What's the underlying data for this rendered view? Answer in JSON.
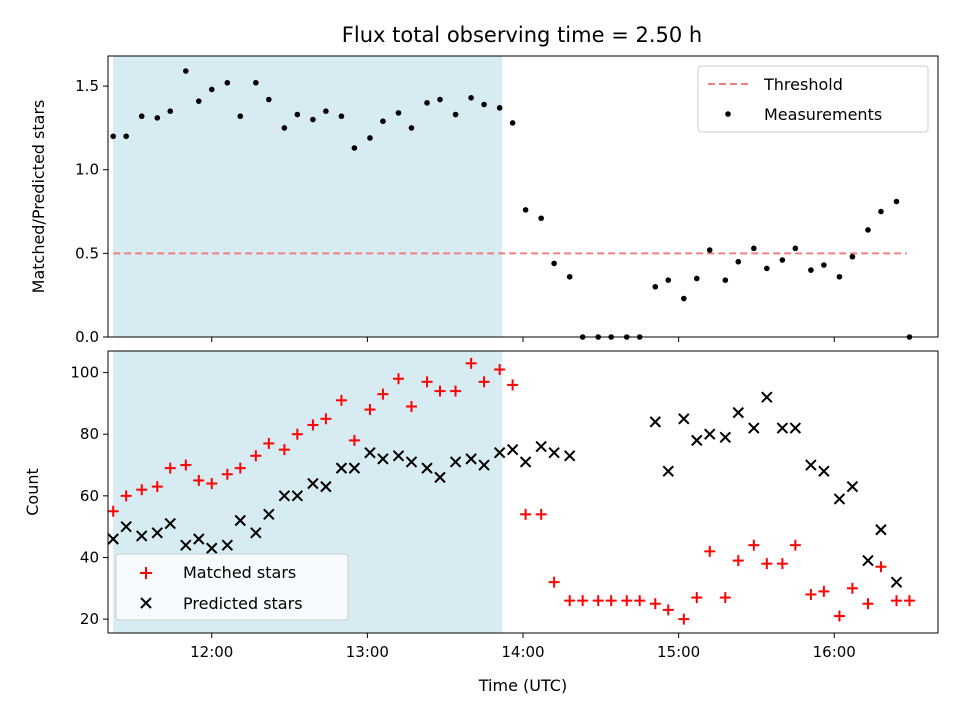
{
  "chart_data": [
    {
      "type": "scatter",
      "title": "Flux total observing time = 2.50 h",
      "xlabel": "",
      "ylabel": "Matched/Predicted stars",
      "ylim": [
        0,
        1.68
      ],
      "xlim": [
        "11:20",
        "16:40"
      ],
      "yticks": [
        0.0,
        0.5,
        1.0,
        1.5
      ],
      "ytick_labels": [
        "0.0",
        "0.5",
        "1.0",
        "1.5"
      ],
      "shaded_span": {
        "start": "11:22",
        "end": "13:52",
        "color": "#add8e6"
      },
      "legend_position": "top-right",
      "threshold": {
        "name": "Threshold",
        "y": 0.5,
        "x_start": "11:22",
        "x_end": "16:28",
        "color": "#f08080"
      },
      "series": [
        {
          "name": "Measurements",
          "color": "#000000",
          "marker": "dot",
          "x": [
            "11:22",
            "11:27",
            "11:33",
            "11:39",
            "11:44",
            "11:50",
            "11:55",
            "12:00",
            "12:06",
            "12:11",
            "12:17",
            "12:22",
            "12:28",
            "12:33",
            "12:39",
            "12:44",
            "12:50",
            "12:55",
            "13:01",
            "13:06",
            "13:12",
            "13:17",
            "13:23",
            "13:28",
            "13:34",
            "13:40",
            "13:45",
            "13:51",
            "13:56",
            "14:01",
            "14:07",
            "14:12",
            "14:18",
            "14:23",
            "14:29",
            "14:34",
            "14:40",
            "14:45",
            "14:51",
            "14:56",
            "15:02",
            "15:07",
            "15:12",
            "15:18",
            "15:23",
            "15:29",
            "15:34",
            "15:40",
            "15:45",
            "15:51",
            "15:56",
            "16:02",
            "16:07",
            "16:13",
            "16:18",
            "16:24",
            "16:29"
          ],
          "y": [
            1.2,
            1.2,
            1.32,
            1.31,
            1.35,
            1.59,
            1.41,
            1.48,
            1.52,
            1.32,
            1.52,
            1.42,
            1.25,
            1.33,
            1.3,
            1.35,
            1.32,
            1.13,
            1.19,
            1.29,
            1.34,
            1.25,
            1.4,
            1.42,
            1.33,
            1.43,
            1.39,
            1.37,
            1.28,
            0.76,
            0.71,
            0.44,
            0.36,
            0,
            0,
            0,
            0,
            0,
            0.3,
            0.34,
            0.23,
            0.35,
            0.52,
            0.34,
            0.45,
            0.53,
            0.41,
            0.46,
            0.53,
            0.4,
            0.43,
            0.36,
            0.48,
            0.64,
            0.75,
            0.81,
            0
          ]
        }
      ]
    },
    {
      "type": "scatter",
      "title": "",
      "xlabel": "Time (UTC)",
      "ylabel": "Count",
      "ylim": [
        15.5,
        107
      ],
      "xlim": [
        "11:20",
        "16:40"
      ],
      "yticks": [
        20,
        40,
        60,
        80,
        100
      ],
      "ytick_labels": [
        "20",
        "40",
        "60",
        "80",
        "100"
      ],
      "xticks": [
        "12:00",
        "13:00",
        "14:00",
        "15:00",
        "16:00"
      ],
      "xtick_labels": [
        "12:00",
        "13:00",
        "14:00",
        "15:00",
        "16:00"
      ],
      "shaded_span": {
        "start": "11:22",
        "end": "13:52",
        "color": "#add8e6"
      },
      "legend_position": "bottom-left",
      "series": [
        {
          "name": "Matched stars",
          "color": "#ff0000",
          "marker": "plus",
          "x": [
            "11:22",
            "11:27",
            "11:33",
            "11:39",
            "11:44",
            "11:50",
            "11:55",
            "12:00",
            "12:06",
            "12:11",
            "12:17",
            "12:22",
            "12:28",
            "12:33",
            "12:39",
            "12:44",
            "12:50",
            "12:55",
            "13:01",
            "13:06",
            "13:12",
            "13:17",
            "13:23",
            "13:28",
            "13:34",
            "13:40",
            "13:45",
            "13:51",
            "13:56",
            "14:01",
            "14:07",
            "14:12",
            "14:18",
            "14:23",
            "14:29",
            "14:34",
            "14:40",
            "14:45",
            "14:51",
            "14:56",
            "15:02",
            "15:07",
            "15:12",
            "15:18",
            "15:23",
            "15:29",
            "15:34",
            "15:40",
            "15:45",
            "15:51",
            "15:56",
            "16:02",
            "16:07",
            "16:13",
            "16:18",
            "16:24",
            "16:29"
          ],
          "y": [
            55,
            60,
            62,
            63,
            69,
            70,
            65,
            64,
            67,
            69,
            73,
            77,
            75,
            80,
            83,
            85,
            91,
            78,
            88,
            93,
            98,
            89,
            97,
            94,
            94,
            103,
            97,
            101,
            96,
            54,
            54,
            32,
            26,
            26,
            26,
            26,
            26,
            26,
            25,
            23,
            20,
            27,
            42,
            27,
            39,
            44,
            38,
            38,
            44,
            28,
            29,
            21,
            30,
            25,
            37,
            26,
            26
          ]
        },
        {
          "name": "Predicted stars",
          "color": "#000000",
          "marker": "x",
          "x": [
            "11:22",
            "11:27",
            "11:33",
            "11:39",
            "11:44",
            "11:50",
            "11:55",
            "12:00",
            "12:06",
            "12:11",
            "12:17",
            "12:22",
            "12:28",
            "12:33",
            "12:39",
            "12:44",
            "12:50",
            "12:55",
            "13:01",
            "13:06",
            "13:12",
            "13:17",
            "13:23",
            "13:28",
            "13:34",
            "13:40",
            "13:45",
            "13:51",
            "13:56",
            "14:01",
            "14:07",
            "14:12",
            "14:18",
            "14:23",
            "14:29",
            "14:34",
            "14:40",
            "14:45",
            "14:51",
            "14:56",
            "15:02",
            "15:07",
            "15:12",
            "15:18",
            "15:23",
            "15:29",
            "15:34",
            "15:40",
            "15:45",
            "15:51",
            "15:56",
            "16:02",
            "16:07",
            "16:13",
            "16:18",
            "16:24",
            "16:29"
          ],
          "y": [
            46,
            50,
            47,
            48,
            51,
            44,
            46,
            43,
            44,
            52,
            48,
            54,
            60,
            60,
            64,
            63,
            69,
            69,
            74,
            72,
            73,
            71,
            69,
            66,
            71,
            72,
            70,
            74,
            75,
            71,
            76,
            74,
            73,
            null,
            null,
            null,
            null,
            null,
            84,
            68,
            85,
            78,
            80,
            79,
            87,
            82,
            92,
            82,
            82,
            70,
            68,
            59,
            63,
            39,
            49,
            32,
            null
          ]
        }
      ]
    }
  ]
}
